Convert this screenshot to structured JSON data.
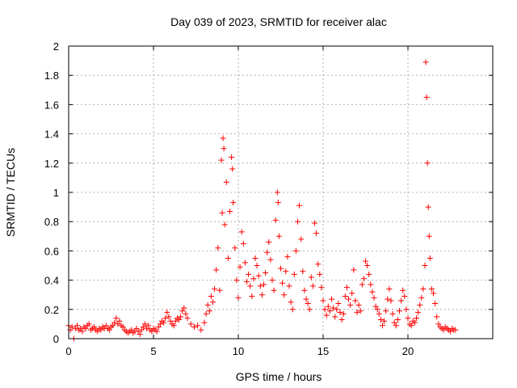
{
  "chart_data": {
    "type": "scatter",
    "title": "Day 039 of 2023, SRMTID for receiver alac",
    "xlabel": "GPS time / hours",
    "ylabel": "SRMTID / TECUs",
    "xlim": [
      0,
      25
    ],
    "ylim": [
      0,
      2
    ],
    "xticks": [
      0,
      5,
      10,
      15,
      20
    ],
    "xtick_labels": [
      "0",
      "5",
      "10",
      "15",
      "20"
    ],
    "yticks": [
      0,
      0.2,
      0.4,
      0.6,
      0.8,
      1,
      1.2,
      1.4,
      1.6,
      1.8,
      2
    ],
    "ytick_labels": [
      "0",
      "0.2",
      "0.4",
      "0.6",
      "0.8",
      "1",
      "1.2",
      "1.4",
      "1.6",
      "1.8",
      "2"
    ],
    "grid": true,
    "marker": "+",
    "color": "#ff0000",
    "series": [
      {
        "name": "SRMTID",
        "points": [
          [
            0.0,
            0.09
          ],
          [
            0.1,
            0.06
          ],
          [
            0.2,
            0.08
          ],
          [
            0.3,
            0.0
          ],
          [
            0.4,
            0.07
          ],
          [
            0.5,
            0.09
          ],
          [
            0.6,
            0.06
          ],
          [
            0.7,
            0.07
          ],
          [
            0.8,
            0.05
          ],
          [
            0.9,
            0.08
          ],
          [
            1.0,
            0.07
          ],
          [
            1.1,
            0.09
          ],
          [
            1.2,
            0.1
          ],
          [
            1.3,
            0.06
          ],
          [
            1.4,
            0.07
          ],
          [
            1.5,
            0.08
          ],
          [
            1.6,
            0.06
          ],
          [
            1.7,
            0.05
          ],
          [
            1.8,
            0.07
          ],
          [
            1.9,
            0.06
          ],
          [
            2.0,
            0.08
          ],
          [
            2.1,
            0.07
          ],
          [
            2.2,
            0.09
          ],
          [
            2.3,
            0.07
          ],
          [
            2.4,
            0.06
          ],
          [
            2.5,
            0.08
          ],
          [
            2.6,
            0.09
          ],
          [
            2.7,
            0.11
          ],
          [
            2.8,
            0.14
          ],
          [
            2.9,
            0.1
          ],
          [
            3.0,
            0.12
          ],
          [
            3.1,
            0.09
          ],
          [
            3.2,
            0.08
          ],
          [
            3.3,
            0.06
          ],
          [
            3.4,
            0.05
          ],
          [
            3.5,
            0.04
          ],
          [
            3.6,
            0.05
          ],
          [
            3.7,
            0.06
          ],
          [
            3.8,
            0.04
          ],
          [
            3.9,
            0.05
          ],
          [
            4.0,
            0.07
          ],
          [
            4.1,
            0.05
          ],
          [
            4.2,
            0.03
          ],
          [
            4.3,
            0.06
          ],
          [
            4.4,
            0.08
          ],
          [
            4.5,
            0.1
          ],
          [
            4.6,
            0.07
          ],
          [
            4.7,
            0.09
          ],
          [
            4.8,
            0.06
          ],
          [
            4.9,
            0.05
          ],
          [
            5.0,
            0.07
          ],
          [
            5.1,
            0.06
          ],
          [
            5.2,
            0.05
          ],
          [
            5.3,
            0.08
          ],
          [
            5.4,
            0.1
          ],
          [
            5.5,
            0.12
          ],
          [
            5.6,
            0.11
          ],
          [
            5.7,
            0.14
          ],
          [
            5.8,
            0.18
          ],
          [
            5.9,
            0.15
          ],
          [
            6.0,
            0.12
          ],
          [
            6.1,
            0.1
          ],
          [
            6.2,
            0.09
          ],
          [
            6.3,
            0.12
          ],
          [
            6.4,
            0.14
          ],
          [
            6.5,
            0.13
          ],
          [
            6.6,
            0.15
          ],
          [
            6.7,
            0.19
          ],
          [
            6.8,
            0.21
          ],
          [
            6.9,
            0.17
          ],
          [
            7.0,
            0.14
          ],
          [
            7.2,
            0.1
          ],
          [
            7.4,
            0.08
          ],
          [
            7.6,
            0.09
          ],
          [
            7.8,
            0.06
          ],
          [
            8.0,
            0.11
          ],
          [
            8.1,
            0.17
          ],
          [
            8.2,
            0.23
          ],
          [
            8.3,
            0.19
          ],
          [
            8.4,
            0.29
          ],
          [
            8.5,
            0.25
          ],
          [
            8.6,
            0.34
          ],
          [
            8.7,
            0.47
          ],
          [
            8.8,
            0.62
          ],
          [
            8.9,
            0.33
          ],
          [
            9.0,
            1.22
          ],
          [
            9.05,
            0.86
          ],
          [
            9.1,
            1.37
          ],
          [
            9.15,
            1.3
          ],
          [
            9.2,
            0.78
          ],
          [
            9.3,
            1.07
          ],
          [
            9.4,
            0.55
          ],
          [
            9.5,
            0.87
          ],
          [
            9.6,
            1.24
          ],
          [
            9.65,
            1.16
          ],
          [
            9.7,
            0.93
          ],
          [
            9.8,
            0.62
          ],
          [
            9.9,
            0.4
          ],
          [
            10.0,
            0.28
          ],
          [
            10.1,
            0.49
          ],
          [
            10.2,
            0.73
          ],
          [
            10.3,
            0.65
          ],
          [
            10.4,
            0.52
          ],
          [
            10.5,
            0.39
          ],
          [
            10.6,
            0.44
          ],
          [
            10.7,
            0.36
          ],
          [
            10.8,
            0.29
          ],
          [
            10.9,
            0.41
          ],
          [
            11.0,
            0.55
          ],
          [
            11.1,
            0.5
          ],
          [
            11.2,
            0.43
          ],
          [
            11.3,
            0.36
          ],
          [
            11.4,
            0.3
          ],
          [
            11.5,
            0.37
          ],
          [
            11.6,
            0.45
          ],
          [
            11.7,
            0.59
          ],
          [
            11.8,
            0.66
          ],
          [
            11.9,
            0.54
          ],
          [
            12.0,
            0.4
          ],
          [
            12.1,
            0.33
          ],
          [
            12.2,
            0.81
          ],
          [
            12.3,
            1.0
          ],
          [
            12.35,
            0.93
          ],
          [
            12.4,
            0.7
          ],
          [
            12.5,
            0.48
          ],
          [
            12.6,
            0.38
          ],
          [
            12.7,
            0.3
          ],
          [
            12.8,
            0.46
          ],
          [
            12.9,
            0.56
          ],
          [
            13.0,
            0.36
          ],
          [
            13.1,
            0.25
          ],
          [
            13.2,
            0.2
          ],
          [
            13.3,
            0.44
          ],
          [
            13.4,
            0.6
          ],
          [
            13.5,
            0.8
          ],
          [
            13.6,
            0.91
          ],
          [
            13.7,
            0.68
          ],
          [
            13.8,
            0.46
          ],
          [
            13.9,
            0.33
          ],
          [
            14.0,
            0.27
          ],
          [
            14.1,
            0.24
          ],
          [
            14.2,
            0.2
          ],
          [
            14.3,
            0.42
          ],
          [
            14.4,
            0.36
          ],
          [
            14.5,
            0.79
          ],
          [
            14.6,
            0.72
          ],
          [
            14.7,
            0.51
          ],
          [
            14.8,
            0.44
          ],
          [
            14.9,
            0.35
          ],
          [
            15.0,
            0.26
          ],
          [
            15.1,
            0.2
          ],
          [
            15.2,
            0.16
          ],
          [
            15.3,
            0.22
          ],
          [
            15.4,
            0.19
          ],
          [
            15.5,
            0.27
          ],
          [
            15.6,
            0.21
          ],
          [
            15.7,
            0.15
          ],
          [
            15.8,
            0.2
          ],
          [
            15.9,
            0.24
          ],
          [
            16.0,
            0.18
          ],
          [
            16.1,
            0.13
          ],
          [
            16.2,
            0.17
          ],
          [
            16.3,
            0.29
          ],
          [
            16.4,
            0.35
          ],
          [
            16.5,
            0.27
          ],
          [
            16.6,
            0.23
          ],
          [
            16.7,
            0.31
          ],
          [
            16.8,
            0.47
          ],
          [
            16.9,
            0.26
          ],
          [
            17.0,
            0.18
          ],
          [
            17.1,
            0.23
          ],
          [
            17.2,
            0.19
          ],
          [
            17.3,
            0.37
          ],
          [
            17.4,
            0.41
          ],
          [
            17.5,
            0.53
          ],
          [
            17.6,
            0.5
          ],
          [
            17.7,
            0.44
          ],
          [
            17.8,
            0.37
          ],
          [
            17.9,
            0.32
          ],
          [
            18.0,
            0.28
          ],
          [
            18.1,
            0.22
          ],
          [
            18.2,
            0.2
          ],
          [
            18.3,
            0.17
          ],
          [
            18.4,
            0.13
          ],
          [
            18.5,
            0.09
          ],
          [
            18.6,
            0.12
          ],
          [
            18.7,
            0.19
          ],
          [
            18.8,
            0.27
          ],
          [
            18.9,
            0.34
          ],
          [
            19.0,
            0.26
          ],
          [
            19.1,
            0.17
          ],
          [
            19.2,
            0.11
          ],
          [
            19.3,
            0.09
          ],
          [
            19.4,
            0.13
          ],
          [
            19.5,
            0.19
          ],
          [
            19.6,
            0.26
          ],
          [
            19.7,
            0.33
          ],
          [
            19.8,
            0.29
          ],
          [
            19.9,
            0.2
          ],
          [
            20.0,
            0.14
          ],
          [
            20.1,
            0.1
          ],
          [
            20.2,
            0.09
          ],
          [
            20.3,
            0.12
          ],
          [
            20.4,
            0.11
          ],
          [
            20.5,
            0.14
          ],
          [
            20.6,
            0.18
          ],
          [
            20.7,
            0.23
          ],
          [
            20.8,
            0.28
          ],
          [
            20.9,
            0.34
          ],
          [
            21.0,
            0.5
          ],
          [
            21.05,
            1.89
          ],
          [
            21.1,
            1.65
          ],
          [
            21.15,
            1.2
          ],
          [
            21.2,
            0.9
          ],
          [
            21.25,
            0.7
          ],
          [
            21.3,
            0.55
          ],
          [
            21.4,
            0.34
          ],
          [
            21.5,
            0.31
          ],
          [
            21.6,
            0.24
          ],
          [
            21.7,
            0.15
          ],
          [
            21.8,
            0.1
          ],
          [
            21.9,
            0.08
          ],
          [
            22.0,
            0.07
          ],
          [
            22.1,
            0.06
          ],
          [
            22.2,
            0.08
          ],
          [
            22.3,
            0.07
          ],
          [
            22.4,
            0.06
          ],
          [
            22.5,
            0.05
          ],
          [
            22.6,
            0.07
          ],
          [
            22.7,
            0.06
          ],
          [
            22.8,
            0.06
          ]
        ]
      }
    ]
  }
}
